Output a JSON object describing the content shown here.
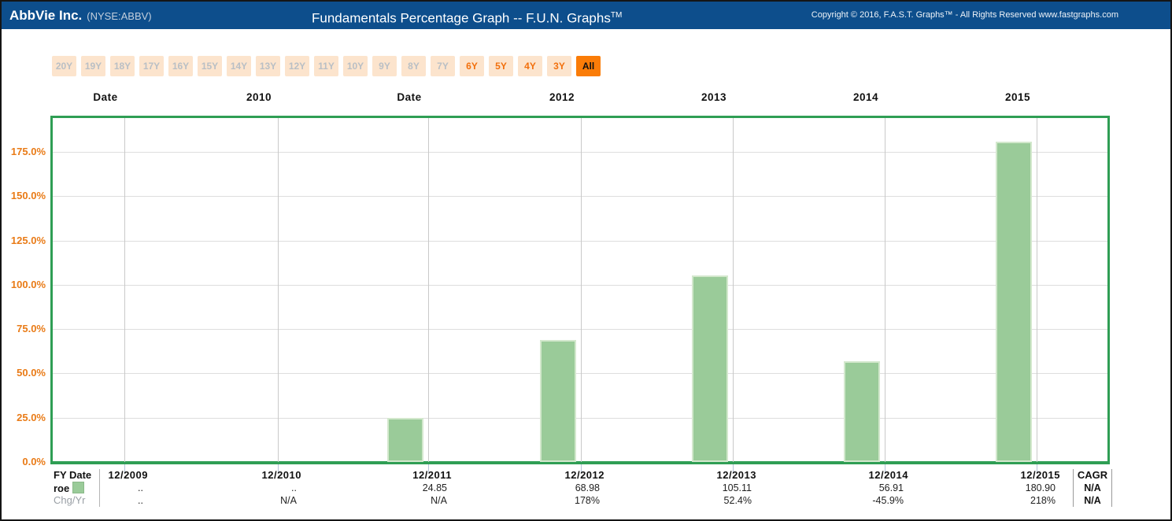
{
  "header": {
    "company": "AbbVie Inc.",
    "ticker": "(NYSE:ABBV)",
    "title": "Fundamentals Percentage Graph -- F.U.N. Graphs",
    "title_superscript": "TM",
    "copyright": "Copyright © 2016, F.A.S.T. Graphs™ - All Rights Reserved www.fastgraphs.com"
  },
  "toolbar": {
    "period_buttons": [
      {
        "label": "20Y",
        "state": "disabled"
      },
      {
        "label": "19Y",
        "state": "disabled"
      },
      {
        "label": "18Y",
        "state": "disabled"
      },
      {
        "label": "17Y",
        "state": "disabled"
      },
      {
        "label": "16Y",
        "state": "disabled"
      },
      {
        "label": "15Y",
        "state": "disabled"
      },
      {
        "label": "14Y",
        "state": "disabled"
      },
      {
        "label": "13Y",
        "state": "disabled"
      },
      {
        "label": "12Y",
        "state": "disabled"
      },
      {
        "label": "11Y",
        "state": "disabled"
      },
      {
        "label": "10Y",
        "state": "disabled"
      },
      {
        "label": "9Y",
        "state": "disabled"
      },
      {
        "label": "8Y",
        "state": "disabled"
      },
      {
        "label": "7Y",
        "state": "disabled"
      },
      {
        "label": "6Y",
        "state": "available"
      },
      {
        "label": "5Y",
        "state": "available"
      },
      {
        "label": "4Y",
        "state": "available"
      },
      {
        "label": "3Y",
        "state": "available"
      },
      {
        "label": "All",
        "state": "selected"
      }
    ]
  },
  "chart_data": {
    "type": "bar",
    "title": "Fundamentals Percentage Graph -- F.U.N. Graphs™",
    "categories": [
      "12/2009",
      "12/2010",
      "12/2011",
      "12/2012",
      "12/2013",
      "12/2014",
      "12/2015"
    ],
    "top_axis_labels": [
      "Date",
      "2010",
      "Date",
      "2012",
      "2013",
      "2014",
      "2015"
    ],
    "series": [
      {
        "name": "roe",
        "color": "#9acb99",
        "values": [
          null,
          null,
          24.85,
          68.98,
          105.11,
          56.91,
          180.9
        ]
      }
    ],
    "y_tick_labels": [
      "0.0%",
      "25.0%",
      "50.0%",
      "75.0%",
      "100.0%",
      "125.0%",
      "150.0%",
      "175.0%"
    ],
    "y_tick_values": [
      0,
      25,
      50,
      75,
      100,
      125,
      150,
      175
    ],
    "ylim": [
      0,
      195
    ],
    "grid": true,
    "ylabel": "",
    "xlabel": "",
    "axis_label_color": "#e97b17",
    "plot_border_color": "#2f9e54"
  },
  "table": {
    "row_labels": {
      "fy_date": "FY Date",
      "roe": "roe",
      "chg": "Chg/Yr"
    },
    "columns": [
      "12/2009",
      "12/2010",
      "12/2011",
      "12/2012",
      "12/2013",
      "12/2014",
      "12/2015"
    ],
    "roe_values": [
      "..",
      "..",
      "24.85",
      "68.98",
      "105.11",
      "56.91",
      "180.90"
    ],
    "chg_values": [
      "..",
      "N/A",
      "N/A",
      "178%",
      "52.4%",
      "-45.9%",
      "218%"
    ],
    "cagr": {
      "header": "CAGR",
      "roe": "N/A",
      "chg": "N/A"
    }
  },
  "colors": {
    "titlebar_bg": "#0d4e8c",
    "accent_orange": "#fa7c08",
    "button_bg": "#fce4cd",
    "bar_fill": "#9acb99",
    "plot_border": "#2f9e54"
  }
}
